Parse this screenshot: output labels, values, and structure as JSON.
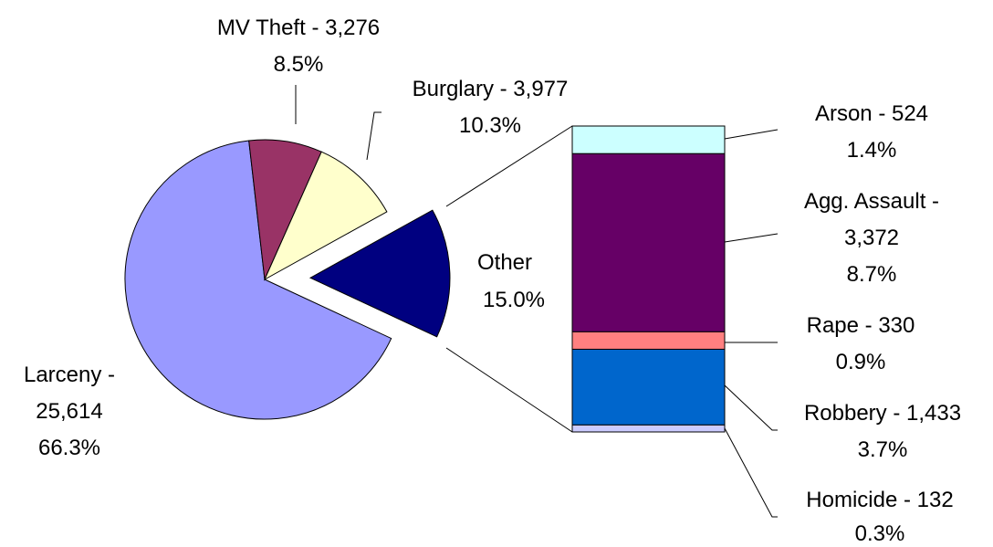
{
  "chart_data": {
    "type": "pie",
    "title": "",
    "pie": {
      "slices": [
        {
          "label": "Other",
          "value": 5791,
          "percent": "15.0%",
          "color": "#000080",
          "exploded": true
        },
        {
          "label": "Larceny -",
          "value": 25614,
          "value_text": "25,614",
          "percent": "66.3%",
          "color": "#9999FF"
        },
        {
          "label": "MV Theft - 3,276",
          "value": 3276,
          "percent": "8.5%",
          "color": "#993366"
        },
        {
          "label": "Burglary - 3,977",
          "value": 3977,
          "percent": "10.3%",
          "color": "#FFFFCC"
        }
      ]
    },
    "breakdown": {
      "parent": "Other",
      "segments": [
        {
          "label": "Arson - 524",
          "value": 524,
          "percent": "1.4%",
          "color": "#CCFFFF"
        },
        {
          "label": "Agg. Assault -",
          "label2": "3,372",
          "value": 3372,
          "percent": "8.7%",
          "color": "#660066"
        },
        {
          "label": "Rape - 330",
          "value": 330,
          "percent": "0.9%",
          "color": "#FF8080"
        },
        {
          "label": "Robbery - 1,433",
          "value": 1433,
          "percent": "3.7%",
          "color": "#0066CC"
        },
        {
          "label": "Homicide - 132",
          "value": 132,
          "percent": "0.3%",
          "color": "#CCCCFF"
        }
      ]
    }
  }
}
